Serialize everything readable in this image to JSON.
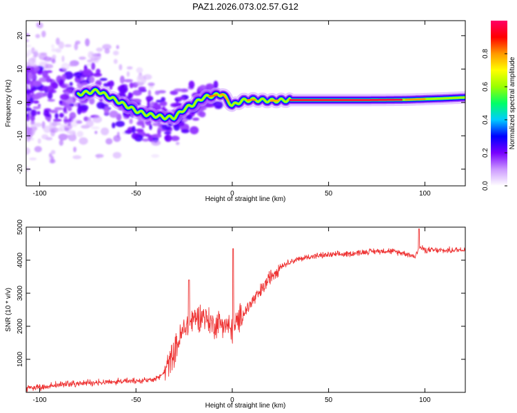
{
  "title": "PAZ1.2026.073.02.57.G12",
  "chart_data": [
    {
      "type": "heatmap",
      "xlabel": "Height of straight line (km)",
      "ylabel": "Frequency (Hz)",
      "xlim": [
        -107,
        121
      ],
      "ylim": [
        -25,
        24.5
      ],
      "xticks": [
        -100,
        -50,
        0,
        50,
        100
      ],
      "yticks": [
        -20,
        -10,
        0,
        10,
        20
      ],
      "colorbar": {
        "label": "Normalized spectral amplitude",
        "range": [
          0,
          1
        ],
        "ticks": [
          0.0,
          0.2,
          0.4,
          0.6,
          0.8
        ],
        "tick_labels": [
          "0.0",
          "0.2",
          "0.4",
          "0.6",
          "0.8"
        ],
        "colors": [
          "#ffffff",
          "#cc99ff",
          "#7700ff",
          "#0000ff",
          "#00ccff",
          "#00ff66",
          "#99ff00",
          "#ffff00",
          "#ff9900",
          "#ff0000",
          "#ff0066"
        ]
      },
      "ridge": {
        "height_km": [
          -80,
          -75,
          -70,
          -65,
          -60,
          -55,
          -50,
          -45,
          -40,
          -35,
          -30,
          -25,
          -20,
          -15,
          -10,
          -5,
          0,
          5,
          10,
          20,
          30,
          50,
          70,
          90,
          100,
          110,
          121
        ],
        "frequency_hz": [
          2.5,
          3,
          3.5,
          2,
          0.5,
          -1,
          -2.5,
          -3.5,
          -4,
          -4.5,
          -4.5,
          -2,
          -0.5,
          1.5,
          2,
          2.5,
          -1,
          0.5,
          0.8,
          0.5,
          0.7,
          0.7,
          0.7,
          0.8,
          1,
          1.2,
          1.5
        ]
      }
    },
    {
      "type": "line",
      "xlabel": "Height of straight line (km)",
      "ylabel": "SNR (10 * v/v)",
      "xlim": [
        -107,
        121
      ],
      "ylim": [
        0,
        5000
      ],
      "xticks": [
        -100,
        -50,
        0,
        50,
        100
      ],
      "yticks": [
        1000,
        2000,
        3000,
        4000,
        5000
      ],
      "series": [
        {
          "name": "SNR",
          "color": "#ee3333",
          "x": [
            -107,
            -100,
            -90,
            -80,
            -70,
            -60,
            -50,
            -40,
            -35,
            -30,
            -25,
            -20,
            -15,
            -10,
            -5,
            0,
            5,
            10,
            15,
            20,
            25,
            30,
            40,
            50,
            60,
            70,
            80,
            90,
            95,
            97,
            100,
            110,
            121
          ],
          "y": [
            120,
            150,
            220,
            260,
            300,
            320,
            330,
            380,
            600,
            1200,
            1900,
            2200,
            2300,
            2000,
            2100,
            1800,
            2300,
            2700,
            3050,
            3500,
            3800,
            3950,
            4100,
            4150,
            4180,
            4250,
            4280,
            4200,
            4100,
            4400,
            4300,
            4280,
            4320
          ]
        }
      ]
    }
  ]
}
